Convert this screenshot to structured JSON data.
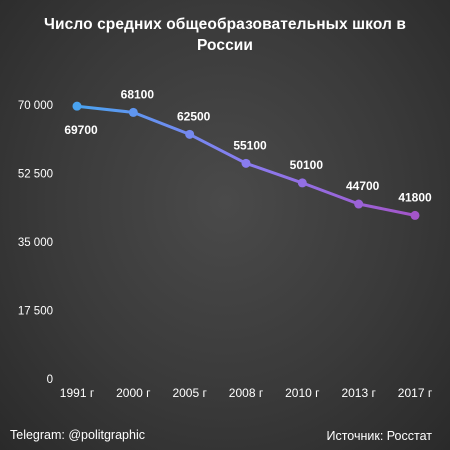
{
  "title_lines": [
    "Число средних общеобразовательных школ в",
    "России"
  ],
  "footer": {
    "left": "Telegram: @politgraphic",
    "right": "Источник: Росстат"
  },
  "colors": {
    "line_start": "#4aa3f0",
    "line_mid": "#8a7cf0",
    "line_end": "#a455c9",
    "axis_text": "#ffffff",
    "grid": "#5a5a5a"
  },
  "chart_data": {
    "type": "line",
    "title": "Число средних общеобразовательных школ в России",
    "categories": [
      "1991 г",
      "2000 г",
      "2005 г",
      "2008 г",
      "2010 г",
      "2013 г",
      "2017 г"
    ],
    "series": [
      {
        "values": [
          69700,
          68100,
          62500,
          55100,
          50100,
          44700,
          41800
        ]
      }
    ],
    "data_labels": [
      "69700",
      "68100",
      "62500",
      "55100",
      "50100",
      "44700",
      "41800"
    ],
    "yticks": [
      0,
      17500,
      35000,
      52500,
      70000
    ],
    "ytick_labels": [
      "0",
      "17 500",
      "35 000",
      "52 500",
      "70 000"
    ],
    "ylim": [
      0,
      70000
    ],
    "grid": false,
    "legend": "none"
  }
}
